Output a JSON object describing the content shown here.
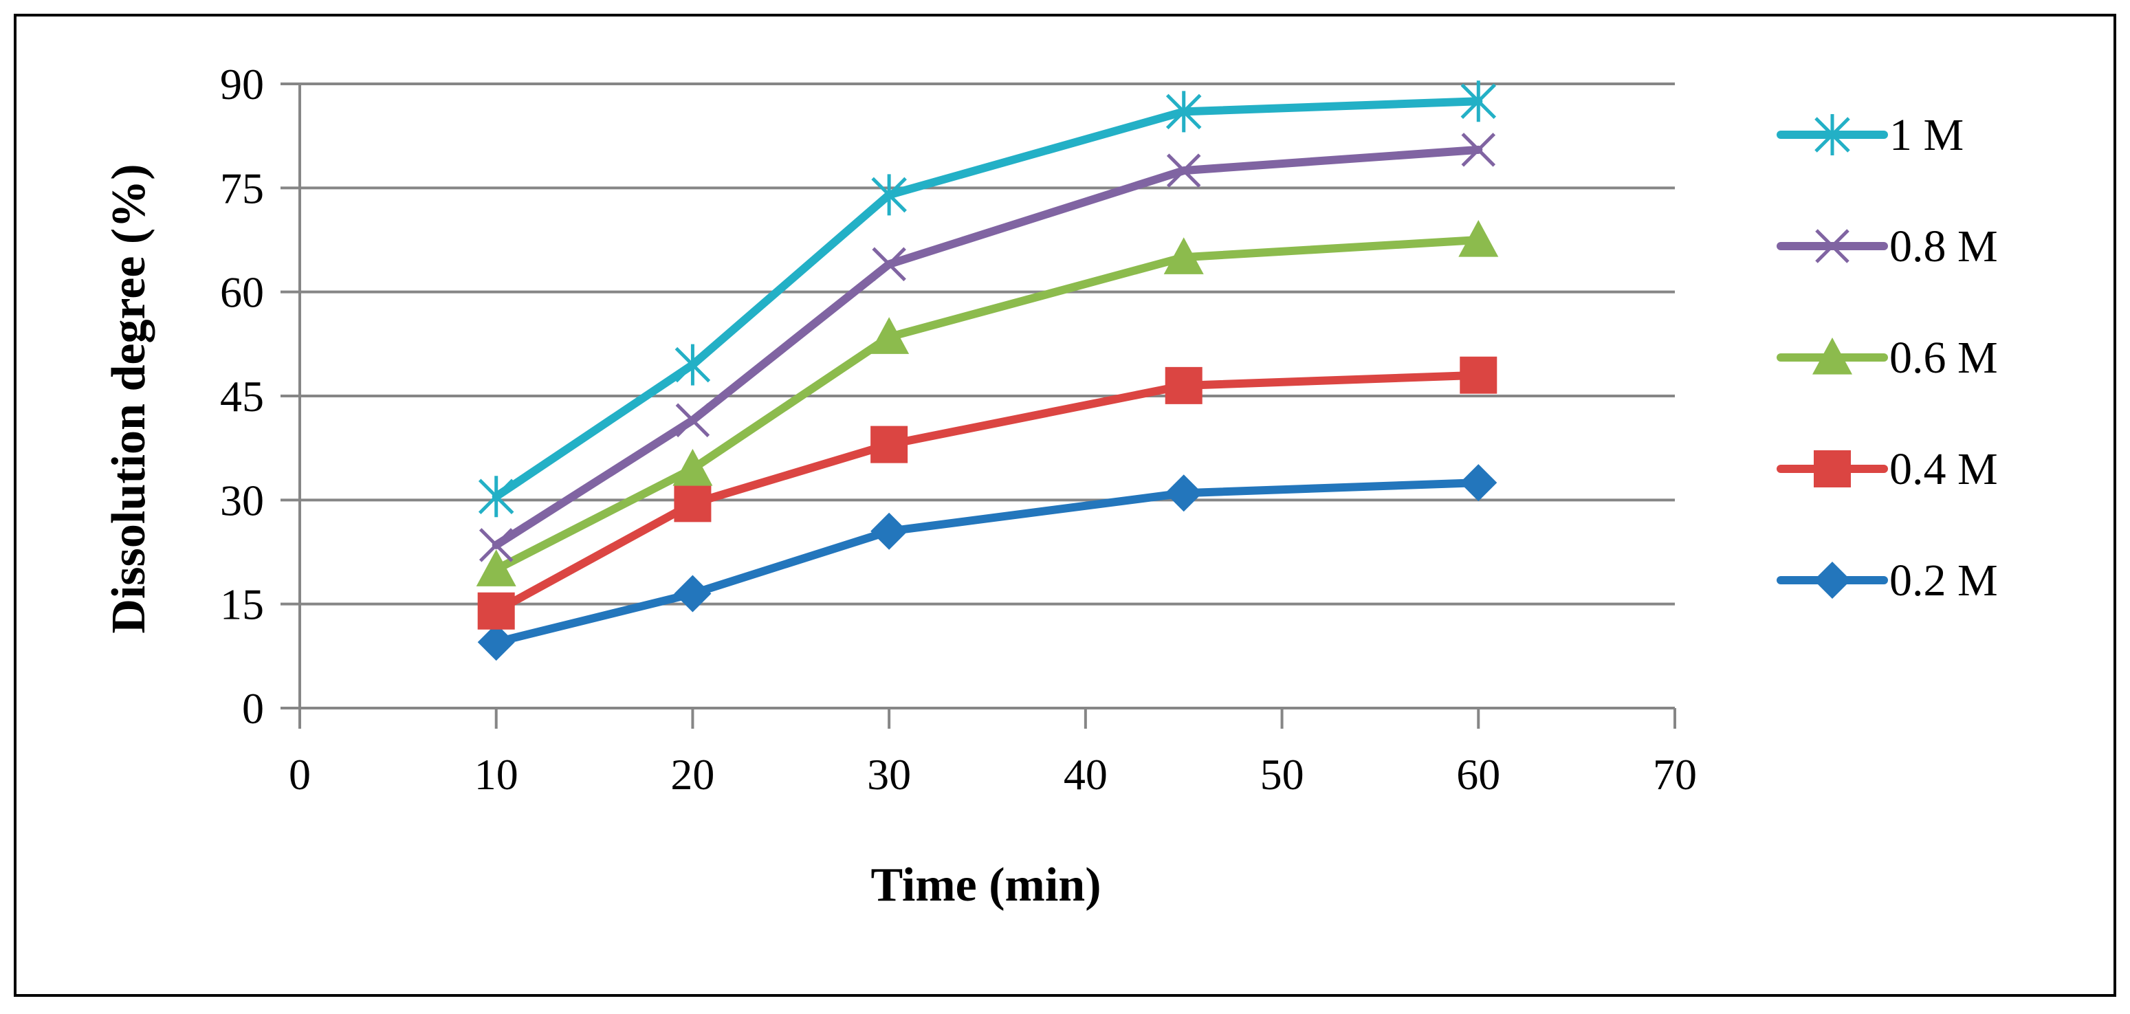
{
  "chart_data": {
    "type": "line",
    "title": "",
    "xlabel": "Time (min)",
    "ylabel": "Dissolution degree (%)",
    "xlim": [
      0,
      70
    ],
    "ylim": [
      0,
      90
    ],
    "xticks": [
      0,
      10,
      20,
      30,
      40,
      50,
      60,
      70
    ],
    "yticks": [
      0,
      15,
      30,
      45,
      60,
      75,
      90
    ],
    "grid": "horizontal",
    "legend_position": "right",
    "x": [
      10,
      20,
      30,
      45,
      60
    ],
    "series": [
      {
        "name": "1 M",
        "marker": "asterisk",
        "color": "#23B0C6",
        "values": [
          30.5,
          49.5,
          74.0,
          86.0,
          87.5
        ]
      },
      {
        "name": "0.8 M",
        "marker": "x",
        "color": "#8064A2",
        "values": [
          23.5,
          41.5,
          64.0,
          77.5,
          80.5
        ]
      },
      {
        "name": "0.6 M",
        "marker": "triangle",
        "color": "#8CBB4D",
        "values": [
          20.0,
          34.5,
          53.5,
          65.0,
          67.5
        ]
      },
      {
        "name": "0.4 M",
        "marker": "square",
        "color": "#DB4542",
        "values": [
          14.0,
          29.5,
          38.0,
          46.5,
          48.0
        ]
      },
      {
        "name": "0.2 M",
        "marker": "diamond",
        "color": "#2376BC",
        "values": [
          9.5,
          16.5,
          25.5,
          31.0,
          32.5
        ]
      }
    ]
  }
}
